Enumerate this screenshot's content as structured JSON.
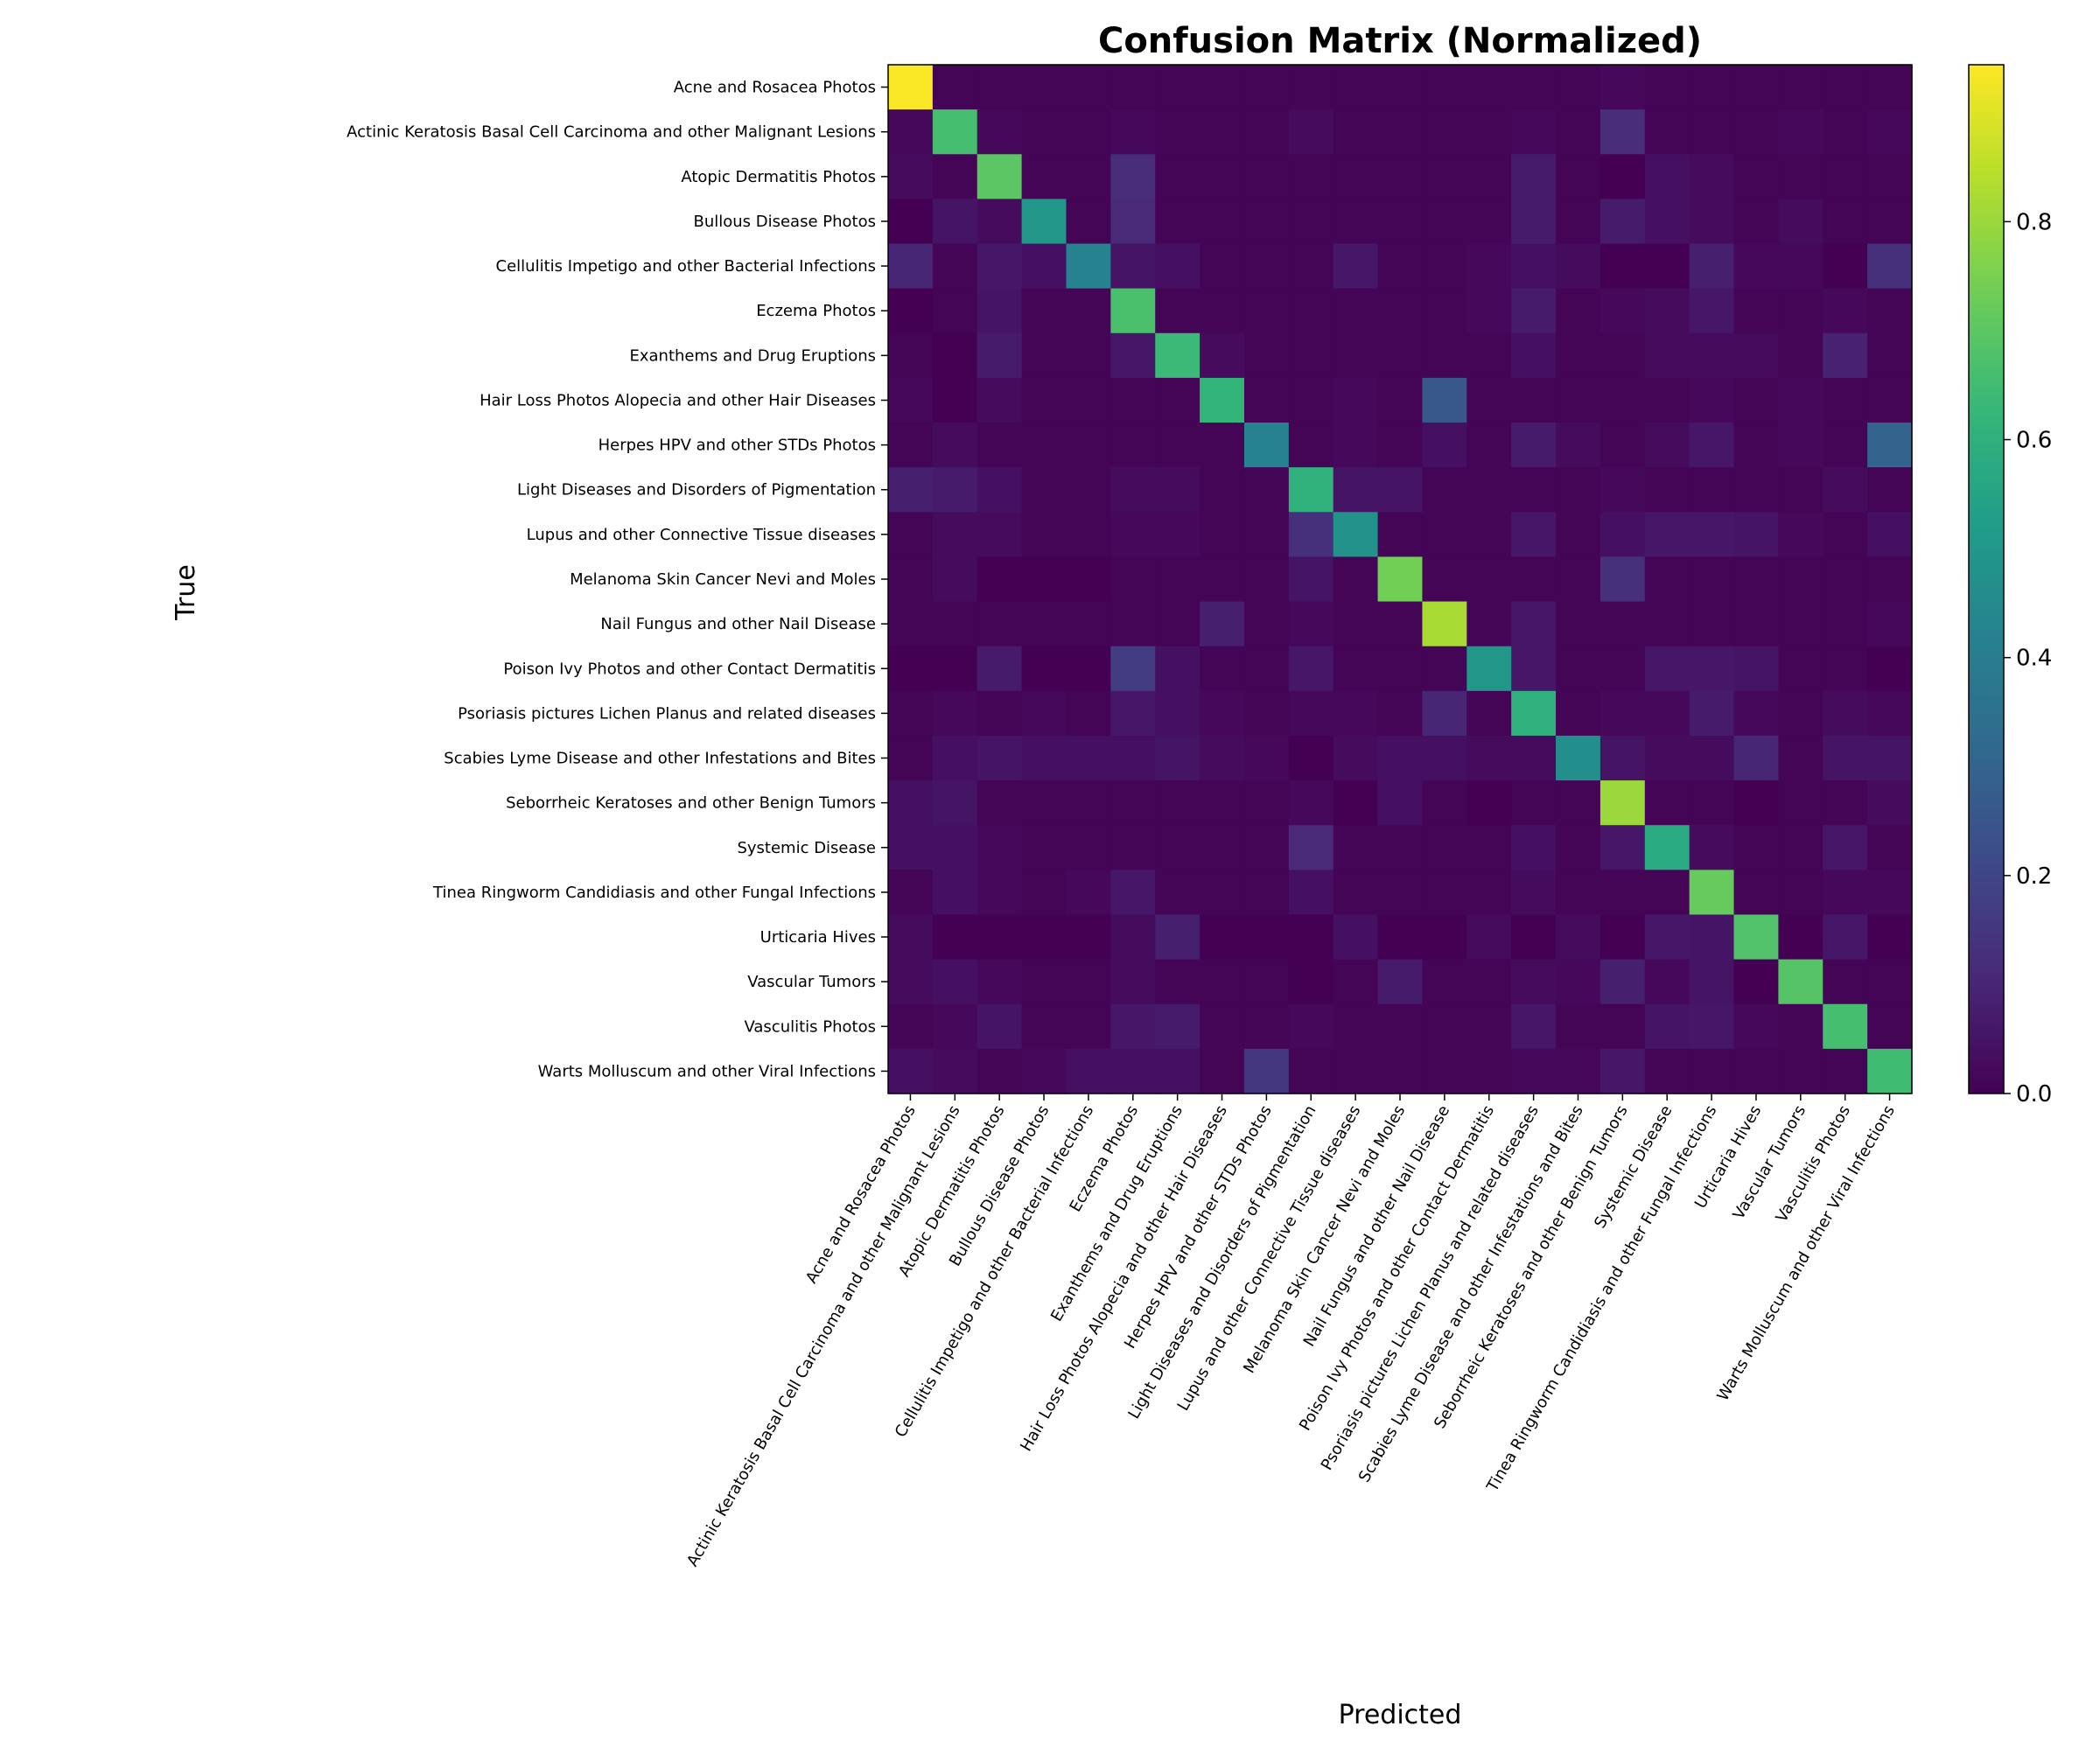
{
  "chart_data": {
    "type": "heatmap",
    "title": "Confusion Matrix (Normalized)",
    "xlabel": "Predicted",
    "ylabel": "True",
    "colormap": "viridis",
    "clim": [
      0,
      0.944
    ],
    "colorbar_ticks": [
      0.0,
      0.2,
      0.4,
      0.6,
      0.8
    ],
    "colorbar_tick_labels": [
      "0.0",
      "0.2",
      "0.4",
      "0.6",
      "0.8"
    ],
    "grid": false,
    "categories": [
      "Acne and Rosacea Photos",
      "Actinic Keratosis Basal Cell Carcinoma and other Malignant Lesions",
      "Atopic Dermatitis Photos",
      "Bullous Disease Photos",
      "Cellulitis Impetigo and other Bacterial Infections",
      "Eczema Photos",
      "Exanthems and Drug Eruptions",
      "Hair Loss Photos Alopecia and other Hair Diseases",
      "Herpes HPV and other STDs Photos",
      "Light Diseases and Disorders of Pigmentation",
      "Lupus and other Connective Tissue diseases",
      "Melanoma Skin Cancer Nevi and Moles",
      "Nail Fungus and other Nail Disease",
      "Poison Ivy Photos and other Contact Dermatitis",
      "Psoriasis pictures Lichen Planus and related diseases",
      "Scabies Lyme Disease and other Infestations and Bites",
      "Seborrheic Keratoses and other Benign Tumors",
      "Systemic Disease",
      "Tinea Ringworm Candidiasis and other Fungal Infections",
      "Urticaria Hives",
      "Vascular Tumors",
      "Vasculitis Photos",
      "Warts Molluscum and other Viral Infections"
    ],
    "matrix": [
      [
        0.94,
        0.01,
        0.01,
        0.01,
        0.01,
        0.01,
        0.01,
        0.01,
        0.01,
        0.01,
        0.01,
        0.01,
        0.01,
        0.01,
        0.01,
        0.01,
        0.02,
        0.01,
        0.01,
        0.01,
        0.01,
        0.01,
        0.01
      ],
      [
        0.02,
        0.66,
        0.02,
        0.01,
        0.01,
        0.02,
        0.01,
        0.01,
        0.01,
        0.03,
        0.01,
        0.01,
        0.01,
        0.01,
        0.02,
        0.01,
        0.12,
        0.01,
        0.01,
        0.01,
        0.02,
        0.01,
        0.02
      ],
      [
        0.03,
        0.01,
        0.7,
        0.01,
        0.01,
        0.12,
        0.01,
        0.01,
        0.01,
        0.01,
        0.01,
        0.01,
        0.01,
        0.01,
        0.07,
        0.01,
        0.0,
        0.04,
        0.03,
        0.01,
        0.01,
        0.01,
        0.01
      ],
      [
        0.0,
        0.05,
        0.03,
        0.5,
        0.01,
        0.11,
        0.01,
        0.01,
        0.01,
        0.01,
        0.01,
        0.01,
        0.01,
        0.01,
        0.07,
        0.01,
        0.07,
        0.04,
        0.03,
        0.01,
        0.03,
        0.01,
        0.01
      ],
      [
        0.1,
        0.01,
        0.06,
        0.04,
        0.42,
        0.05,
        0.04,
        0.01,
        0.01,
        0.01,
        0.06,
        0.01,
        0.01,
        0.02,
        0.04,
        0.03,
        0.0,
        0.0,
        0.08,
        0.02,
        0.02,
        0.0,
        0.13
      ],
      [
        0.0,
        0.01,
        0.05,
        0.01,
        0.01,
        0.67,
        0.01,
        0.01,
        0.01,
        0.01,
        0.01,
        0.01,
        0.01,
        0.02,
        0.07,
        0.01,
        0.02,
        0.03,
        0.06,
        0.01,
        0.01,
        0.02,
        0.01
      ],
      [
        0.01,
        0.0,
        0.07,
        0.01,
        0.01,
        0.06,
        0.64,
        0.03,
        0.01,
        0.01,
        0.01,
        0.01,
        0.01,
        0.01,
        0.04,
        0.01,
        0.01,
        0.03,
        0.03,
        0.03,
        0.01,
        0.09,
        0.01
      ],
      [
        0.02,
        0.0,
        0.03,
        0.01,
        0.01,
        0.01,
        0.01,
        0.62,
        0.01,
        0.01,
        0.02,
        0.01,
        0.26,
        0.01,
        0.01,
        0.01,
        0.01,
        0.01,
        0.02,
        0.01,
        0.02,
        0.01,
        0.01
      ],
      [
        0.01,
        0.03,
        0.01,
        0.01,
        0.01,
        0.01,
        0.01,
        0.01,
        0.42,
        0.01,
        0.02,
        0.01,
        0.04,
        0.01,
        0.07,
        0.03,
        0.01,
        0.03,
        0.06,
        0.01,
        0.02,
        0.01,
        0.3
      ],
      [
        0.08,
        0.07,
        0.04,
        0.01,
        0.01,
        0.03,
        0.03,
        0.01,
        0.01,
        0.61,
        0.05,
        0.05,
        0.01,
        0.01,
        0.01,
        0.01,
        0.02,
        0.01,
        0.01,
        0.01,
        0.01,
        0.03,
        0.01
      ],
      [
        0.01,
        0.03,
        0.03,
        0.01,
        0.01,
        0.02,
        0.02,
        0.01,
        0.01,
        0.13,
        0.48,
        0.01,
        0.01,
        0.01,
        0.06,
        0.01,
        0.04,
        0.06,
        0.06,
        0.05,
        0.02,
        0.01,
        0.04
      ],
      [
        0.01,
        0.03,
        0.0,
        0.0,
        0.0,
        0.01,
        0.01,
        0.01,
        0.01,
        0.05,
        0.01,
        0.74,
        0.01,
        0.01,
        0.01,
        0.01,
        0.13,
        0.01,
        0.01,
        0.01,
        0.01,
        0.01,
        0.01
      ],
      [
        0.01,
        0.01,
        0.01,
        0.01,
        0.01,
        0.01,
        0.01,
        0.08,
        0.01,
        0.02,
        0.01,
        0.01,
        0.82,
        0.01,
        0.06,
        0.01,
        0.01,
        0.01,
        0.01,
        0.01,
        0.01,
        0.01,
        0.02
      ],
      [
        0.0,
        0.0,
        0.07,
        0.0,
        0.0,
        0.17,
        0.04,
        0.01,
        0.01,
        0.06,
        0.01,
        0.01,
        0.01,
        0.5,
        0.06,
        0.01,
        0.01,
        0.06,
        0.06,
        0.05,
        0.01,
        0.01,
        0.0
      ],
      [
        0.01,
        0.02,
        0.01,
        0.02,
        0.01,
        0.06,
        0.04,
        0.02,
        0.01,
        0.02,
        0.02,
        0.01,
        0.1,
        0.01,
        0.6,
        0.01,
        0.02,
        0.02,
        0.07,
        0.02,
        0.01,
        0.03,
        0.02
      ],
      [
        0.01,
        0.04,
        0.05,
        0.04,
        0.04,
        0.04,
        0.05,
        0.03,
        0.02,
        0.0,
        0.03,
        0.04,
        0.04,
        0.03,
        0.03,
        0.47,
        0.05,
        0.03,
        0.03,
        0.1,
        0.01,
        0.05,
        0.05
      ],
      [
        0.04,
        0.05,
        0.01,
        0.01,
        0.01,
        0.01,
        0.01,
        0.01,
        0.01,
        0.02,
        0.0,
        0.04,
        0.01,
        0.0,
        0.01,
        0.01,
        0.8,
        0.01,
        0.01,
        0.0,
        0.01,
        0.01,
        0.03
      ],
      [
        0.04,
        0.04,
        0.02,
        0.01,
        0.01,
        0.01,
        0.01,
        0.01,
        0.01,
        0.11,
        0.01,
        0.01,
        0.01,
        0.01,
        0.04,
        0.01,
        0.06,
        0.58,
        0.03,
        0.01,
        0.01,
        0.06,
        0.01
      ],
      [
        0.01,
        0.04,
        0.02,
        0.01,
        0.02,
        0.06,
        0.01,
        0.01,
        0.01,
        0.04,
        0.01,
        0.01,
        0.01,
        0.01,
        0.03,
        0.01,
        0.01,
        0.01,
        0.72,
        0.01,
        0.01,
        0.02,
        0.02
      ],
      [
        0.03,
        0.0,
        0.0,
        0.0,
        0.0,
        0.03,
        0.08,
        0.0,
        0.0,
        0.0,
        0.04,
        0.0,
        0.0,
        0.03,
        0.0,
        0.03,
        0.0,
        0.06,
        0.05,
        0.68,
        0.0,
        0.06,
        0.0
      ],
      [
        0.03,
        0.04,
        0.02,
        0.01,
        0.01,
        0.03,
        0.01,
        0.01,
        0.01,
        0.0,
        0.01,
        0.07,
        0.01,
        0.01,
        0.03,
        0.02,
        0.08,
        0.02,
        0.05,
        0.0,
        0.69,
        0.01,
        0.01
      ],
      [
        0.01,
        0.02,
        0.05,
        0.01,
        0.01,
        0.06,
        0.07,
        0.01,
        0.01,
        0.02,
        0.01,
        0.01,
        0.01,
        0.01,
        0.06,
        0.01,
        0.01,
        0.05,
        0.06,
        0.02,
        0.01,
        0.66,
        0.01
      ],
      [
        0.04,
        0.03,
        0.01,
        0.02,
        0.04,
        0.04,
        0.04,
        0.01,
        0.15,
        0.01,
        0.01,
        0.01,
        0.01,
        0.01,
        0.02,
        0.02,
        0.06,
        0.01,
        0.01,
        0.01,
        0.01,
        0.01,
        0.65
      ]
    ]
  }
}
